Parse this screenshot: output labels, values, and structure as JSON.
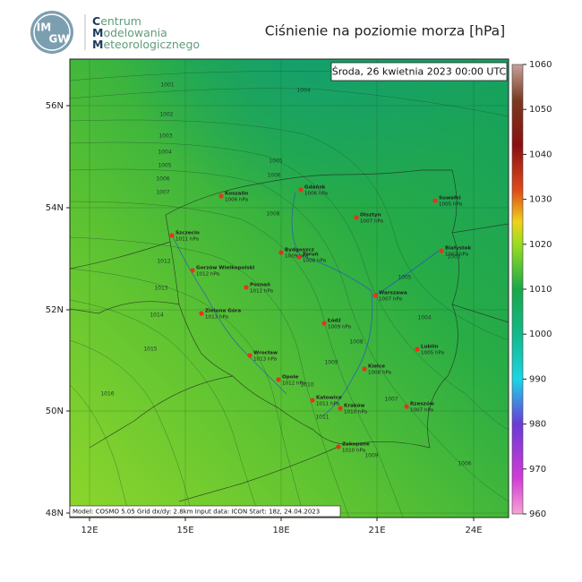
{
  "header": {
    "logo": [
      "IM",
      "GW"
    ],
    "org": [
      "Centrum",
      "Modelowania",
      "Meteorologicznego"
    ]
  },
  "title": "Ciśnienie na poziomie morza [hPa]",
  "date": "Środa, 26 kwietnia 2023 00:00 UTC",
  "footer": "Model: COSMO 5.05   Grid dx/dy: 2.8km   Input data: ICON   Start: 18z, 24.04.2023",
  "lat_labels": [
    "56N",
    "54N",
    "52N",
    "50N",
    "48N"
  ],
  "lon_labels": [
    "12E",
    "15E",
    "18E",
    "21E",
    "24E"
  ],
  "colorbar": {
    "range": [
      960,
      1060
    ],
    "ticks": [
      1060,
      1050,
      1040,
      1030,
      1020,
      1010,
      1000,
      990,
      980,
      970,
      960
    ]
  },
  "cities": [
    {
      "name": "Koszalin",
      "pressure": "1006 hPa"
    },
    {
      "name": "Gdańsk",
      "pressure": "1006 hPa"
    },
    {
      "name": "Suwałki",
      "pressure": "1005 hPa"
    },
    {
      "name": "Olsztyn",
      "pressure": "1007 hPa"
    },
    {
      "name": "Szczecin",
      "pressure": "1011 hPa"
    },
    {
      "name": "Białystok",
      "pressure": "1003 hPa"
    },
    {
      "name": "Bydgoszcz",
      "pressure": "1009 hPa"
    },
    {
      "name": "Toruń",
      "pressure": "1008 hPa"
    },
    {
      "name": "Gorzów Wielkopolski",
      "pressure": "1012 hPa"
    },
    {
      "name": "Poznań",
      "pressure": "1011 hPa"
    },
    {
      "name": "Warszawa",
      "pressure": "1007 hPa"
    },
    {
      "name": "Zielona Góra",
      "pressure": "1013 hPa"
    },
    {
      "name": "Łódź",
      "pressure": "1009 hPa"
    },
    {
      "name": "Lublin",
      "pressure": "1005 hPa"
    },
    {
      "name": "Wrocław",
      "pressure": "1013 hPa"
    },
    {
      "name": "Kielce",
      "pressure": "1008 hPa"
    },
    {
      "name": "Opole",
      "pressure": "1012 hPa"
    },
    {
      "name": "Katowice",
      "pressure": "1011 hPa"
    },
    {
      "name": "Kraków",
      "pressure": "1010 hPa"
    },
    {
      "name": "Rzeszów",
      "pressure": "1007 hPa"
    },
    {
      "name": "Zakopane",
      "pressure": "1010 hPa"
    }
  ],
  "isobar_labels": [
    "1001",
    "1002",
    "1003",
    "1004",
    "1005",
    "1006",
    "1007",
    "1004",
    "1005",
    "1006",
    "1008",
    "1003",
    "1004",
    "1005",
    "1012",
    "1013",
    "1014",
    "1015",
    "1016",
    "1008",
    "1009",
    "1010",
    "1011",
    "1009",
    "1007",
    "1006"
  ]
}
